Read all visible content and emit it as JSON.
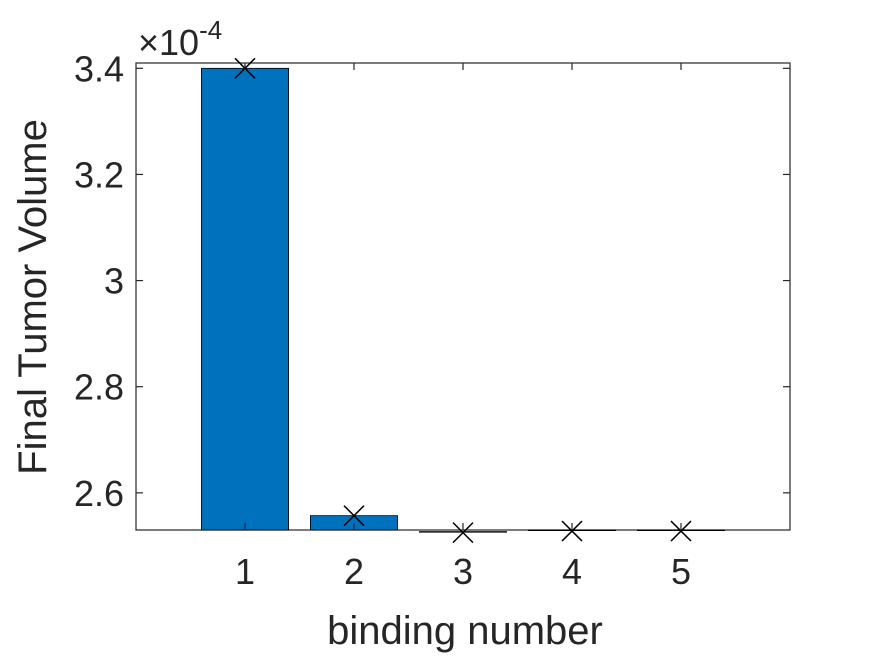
{
  "chart_data": {
    "type": "bar",
    "categories": [
      "1",
      "2",
      "3",
      "4",
      "5"
    ],
    "values": [
      3.4,
      2.557,
      2.527,
      2.53,
      2.53
    ],
    "markers": [
      3.4,
      2.557,
      2.525,
      2.528,
      2.528
    ],
    "xlabel": "binding number",
    "ylabel": "Final Tumor Volume",
    "yticks": [
      "2.6",
      "2.8",
      "3",
      "3.2",
      "3.4"
    ],
    "ytick_values": [
      2.6,
      2.8,
      3.0,
      3.2,
      3.4
    ],
    "ylim": [
      2.53,
      3.41
    ],
    "xlim": [
      0,
      6
    ],
    "exponent_prefix": "×10",
    "exponent": "-4",
    "grid": false,
    "colors": {
      "bar": "#0072BD",
      "bar_edge": "#000000",
      "marker": "#000000",
      "axis": "#262626"
    }
  }
}
